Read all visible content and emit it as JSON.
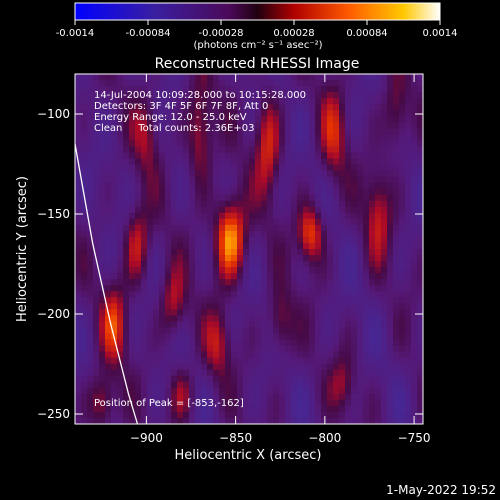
{
  "colorbar": {
    "tick_labels": [
      "-0.0014",
      "-0.00084",
      "-0.00028",
      "0.00028",
      "0.00084",
      "0.0014"
    ],
    "range": [
      -0.0014,
      0.0014
    ],
    "unit_label": "(photons cm⁻² s⁻¹ asec⁻²)"
  },
  "chart_data": {
    "type": "heatmap",
    "title": "Reconstructed RHESSI Image",
    "xlabel": "Heliocentric X (arcsec)",
    "ylabel": "Heliocentric Y (arcsec)",
    "xlim": [
      -940,
      -745
    ],
    "ylim": [
      -255,
      -80
    ],
    "x_ticks": [
      -900,
      -850,
      -800,
      -750
    ],
    "y_ticks": [
      -100,
      -150,
      -200,
      -250
    ],
    "grid": false,
    "annotations": [
      "14-Jul-2004 10:09:28.000 to 10:15:28.000",
      "Detectors: 3F 4F 5F 6F 7F 8F, Att 0",
      "Energy Range: 12.0 - 25.0 keV",
      "Clean     Total counts: 2.36E+03"
    ],
    "peak_label": "Position of Peak = [-853,-162]",
    "peak": [
      -853,
      -162
    ],
    "limb_curve": [
      [
        -940,
        -115
      ],
      [
        -930,
        -165
      ],
      [
        -920,
        -205
      ],
      [
        -910,
        -240
      ],
      [
        -905,
        -255
      ]
    ],
    "sources": [
      {
        "x": -853,
        "y": -162,
        "amp": 1.0,
        "sx": 6,
        "sy": 14
      },
      {
        "x": -808,
        "y": -160,
        "amp": 0.75,
        "sx": 5,
        "sy": 10
      },
      {
        "x": -870,
        "y": -110,
        "amp": 0.55,
        "sx": 5,
        "sy": 18
      },
      {
        "x": -832,
        "y": -115,
        "amp": 0.6,
        "sx": 5,
        "sy": 18
      },
      {
        "x": -795,
        "y": -110,
        "amp": 0.5,
        "sx": 5,
        "sy": 16
      },
      {
        "x": -905,
        "y": -165,
        "amp": 0.55,
        "sx": 5,
        "sy": 14
      },
      {
        "x": -918,
        "y": -205,
        "amp": 0.6,
        "sx": 5,
        "sy": 14
      },
      {
        "x": -885,
        "y": -195,
        "amp": 0.5,
        "sx": 5,
        "sy": 12
      },
      {
        "x": -860,
        "y": -215,
        "amp": 0.45,
        "sx": 5,
        "sy": 12
      },
      {
        "x": -825,
        "y": -205,
        "amp": 0.45,
        "sx": 5,
        "sy": 12
      },
      {
        "x": -770,
        "y": -150,
        "amp": 0.5,
        "sx": 5,
        "sy": 16
      },
      {
        "x": -760,
        "y": -100,
        "amp": 0.45,
        "sx": 5,
        "sy": 14
      },
      {
        "x": -925,
        "y": -245,
        "amp": 0.55,
        "sx": 5,
        "sy": 10
      },
      {
        "x": -880,
        "y": -240,
        "amp": 0.4,
        "sx": 5,
        "sy": 10
      },
      {
        "x": -790,
        "y": -235,
        "amp": 0.35,
        "sx": 5,
        "sy": 10
      },
      {
        "x": -900,
        "y": -110,
        "amp": 0.4,
        "sx": 5,
        "sy": 14
      }
    ]
  },
  "footer": {
    "timestamp": "1-May-2022 19:52"
  },
  "colors": {
    "background": "#000000",
    "foreground": "#ffffff"
  }
}
